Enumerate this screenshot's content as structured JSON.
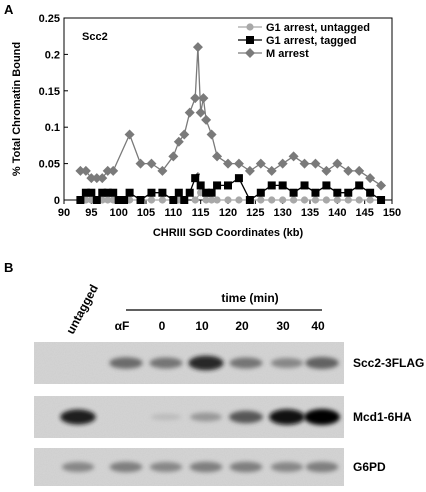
{
  "panel_a": {
    "letter": "A",
    "chart_data": {
      "type": "line",
      "title": "Scc2",
      "xlabel": "CHRIII SGD Coordinates (kb)",
      "ylabel": "% Total Chromatin Bound",
      "xlim": [
        90,
        150
      ],
      "ylim": [
        0,
        0.25
      ],
      "x_ticks": [
        90,
        95,
        100,
        105,
        110,
        115,
        120,
        125,
        130,
        135,
        140,
        145,
        150
      ],
      "y_ticks": [
        0,
        0.05,
        0.1,
        0.15,
        0.2,
        0.25
      ],
      "y_tick_labels": [
        "0",
        "0.05",
        "0.1",
        "0.15",
        "0.2",
        "0.25"
      ],
      "grid": false,
      "legend_position": "top-right",
      "annotation": "*",
      "annotation_at": [
        114.5,
        0.025
      ],
      "series": [
        {
          "name": "G1 arrest, untagged",
          "color": "#a8a8a8",
          "marker": "circle",
          "points": [
            [
              93,
              0
            ],
            [
              94,
              0
            ],
            [
              95,
              0
            ],
            [
              96,
              0
            ],
            [
              97,
              0
            ],
            [
              98,
              0
            ],
            [
              99,
              0
            ],
            [
              100,
              0
            ],
            [
              101,
              0
            ],
            [
              102,
              0
            ],
            [
              104,
              0
            ],
            [
              106,
              0
            ],
            [
              108,
              0
            ],
            [
              110,
              0
            ],
            [
              111,
              0
            ],
            [
              112,
              0
            ],
            [
              113,
              0.01
            ],
            [
              114,
              0
            ],
            [
              115,
              0.01
            ],
            [
              116,
              0
            ],
            [
              117,
              0
            ],
            [
              118,
              0
            ],
            [
              120,
              0
            ],
            [
              122,
              0
            ],
            [
              124,
              0
            ],
            [
              126,
              0
            ],
            [
              128,
              0
            ],
            [
              130,
              0
            ],
            [
              132,
              0
            ],
            [
              134,
              0
            ],
            [
              136,
              0
            ],
            [
              138,
              0
            ],
            [
              140,
              0
            ],
            [
              142,
              0
            ],
            [
              144,
              0
            ],
            [
              146,
              0
            ],
            [
              148,
              0
            ]
          ]
        },
        {
          "name": "G1 arrest, tagged",
          "color": "#000000",
          "marker": "square",
          "points": [
            [
              93,
              0
            ],
            [
              94,
              0.01
            ],
            [
              95,
              0.01
            ],
            [
              96,
              0
            ],
            [
              97,
              0.01
            ],
            [
              98,
              0.01
            ],
            [
              99,
              0.01
            ],
            [
              100,
              0
            ],
            [
              101,
              0
            ],
            [
              102,
              0.01
            ],
            [
              104,
              0
            ],
            [
              106,
              0.01
            ],
            [
              108,
              0.01
            ],
            [
              110,
              0
            ],
            [
              111,
              0.01
            ],
            [
              112,
              0
            ],
            [
              113,
              0.01
            ],
            [
              114,
              0.03
            ],
            [
              115,
              0.02
            ],
            [
              116,
              0.01
            ],
            [
              117,
              0.01
            ],
            [
              118,
              0.02
            ],
            [
              120,
              0.02
            ],
            [
              122,
              0.03
            ],
            [
              124,
              0
            ],
            [
              126,
              0.01
            ],
            [
              128,
              0.02
            ],
            [
              130,
              0.02
            ],
            [
              132,
              0.01
            ],
            [
              134,
              0.02
            ],
            [
              136,
              0.01
            ],
            [
              138,
              0.02
            ],
            [
              140,
              0.01
            ],
            [
              142,
              0.01
            ],
            [
              144,
              0.02
            ],
            [
              146,
              0.01
            ],
            [
              148,
              0
            ]
          ]
        },
        {
          "name": "M arrest",
          "color": "#7a7a7a",
          "marker": "diamond",
          "points": [
            [
              93,
              0.04
            ],
            [
              94,
              0.04
            ],
            [
              95,
              0.03
            ],
            [
              96,
              0.03
            ],
            [
              97,
              0.03
            ],
            [
              98,
              0.04
            ],
            [
              99,
              0.04
            ],
            [
              102,
              0.09
            ],
            [
              104,
              0.05
            ],
            [
              106,
              0.05
            ],
            [
              108,
              0.04
            ],
            [
              110,
              0.06
            ],
            [
              111,
              0.08
            ],
            [
              112,
              0.09
            ],
            [
              113,
              0.12
            ],
            [
              114,
              0.14
            ],
            [
              114.5,
              0.21
            ],
            [
              115,
              0.12
            ],
            [
              115.5,
              0.14
            ],
            [
              116,
              0.11
            ],
            [
              117,
              0.09
            ],
            [
              118,
              0.06
            ],
            [
              120,
              0.05
            ],
            [
              122,
              0.05
            ],
            [
              124,
              0.04
            ],
            [
              126,
              0.05
            ],
            [
              128,
              0.04
            ],
            [
              130,
              0.05
            ],
            [
              132,
              0.06
            ],
            [
              134,
              0.05
            ],
            [
              136,
              0.05
            ],
            [
              138,
              0.04
            ],
            [
              140,
              0.05
            ],
            [
              142,
              0.04
            ],
            [
              144,
              0.04
            ],
            [
              146,
              0.03
            ],
            [
              148,
              0.02
            ]
          ]
        }
      ]
    }
  },
  "panel_b": {
    "letter": "B",
    "untagged_label": "untagged",
    "time_label": "time (min)",
    "lanes": [
      {
        "label": "αF"
      },
      {
        "label": "0"
      },
      {
        "label": "10"
      },
      {
        "label": "20"
      },
      {
        "label": "30"
      },
      {
        "label": "40"
      }
    ],
    "blots": [
      {
        "label": "Scc2-3FLAG",
        "band_intensity": [
          0,
          0.55,
          0.5,
          0.85,
          0.5,
          0.4,
          0.6
        ]
      },
      {
        "label": "Mcd1-6HA",
        "band_intensity": [
          0.9,
          0,
          0.05,
          0.3,
          0.65,
          0.95,
          1.0
        ]
      },
      {
        "label": "G6PD",
        "band_intensity": [
          0.4,
          0.45,
          0.4,
          0.45,
          0.45,
          0.4,
          0.45
        ]
      }
    ]
  }
}
